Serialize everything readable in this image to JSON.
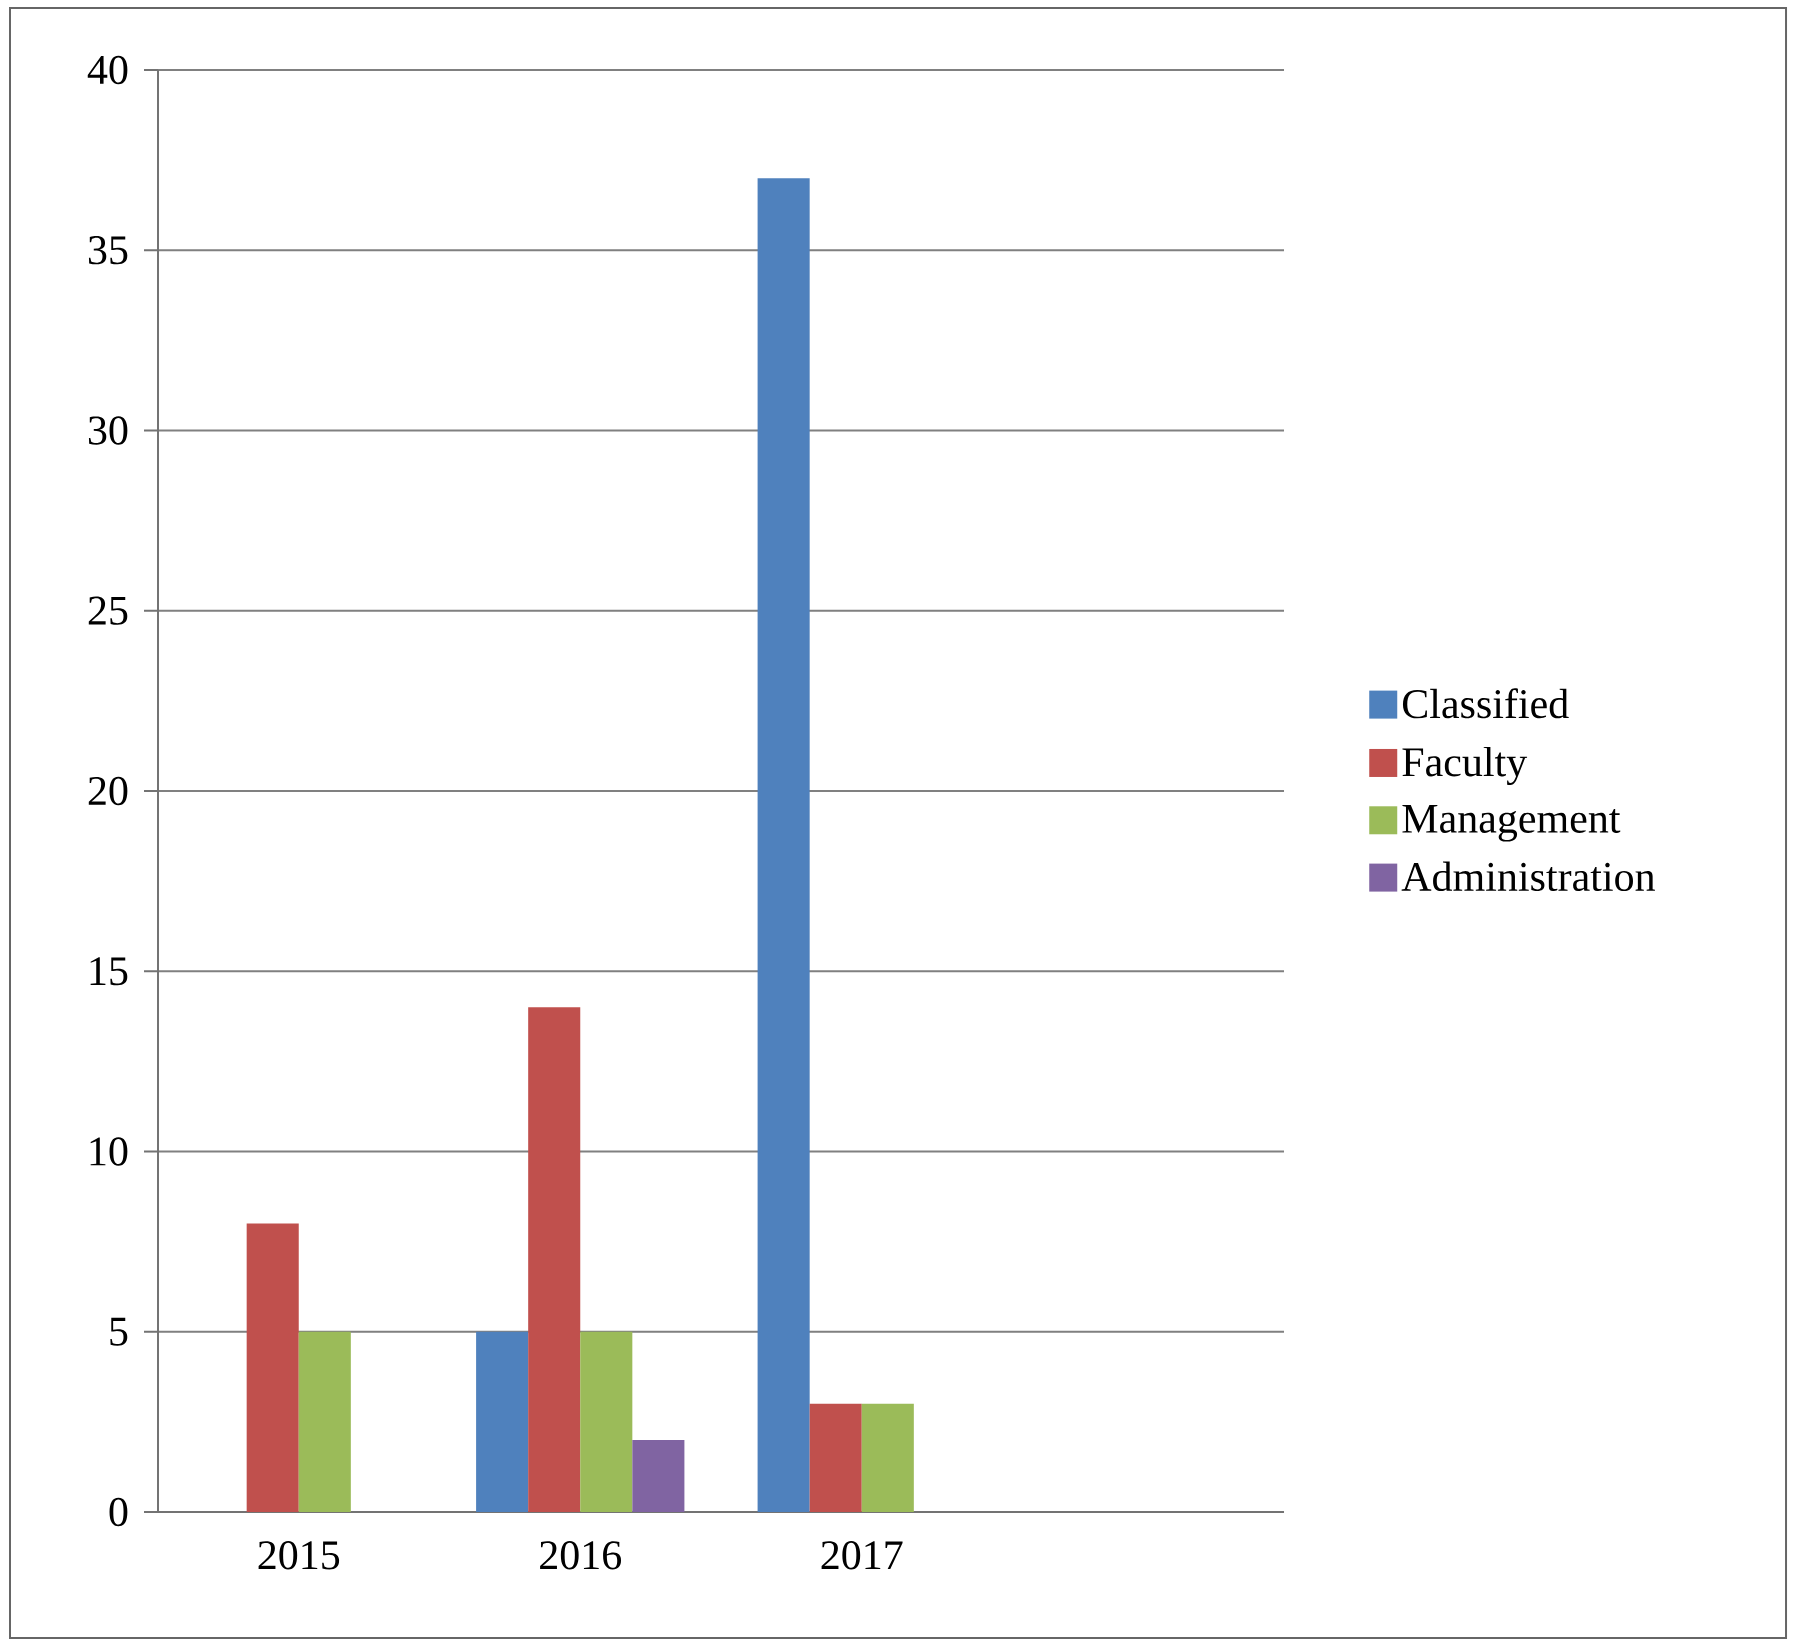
{
  "chart_data": {
    "type": "bar",
    "categories": [
      "2015",
      "2016",
      "2017",
      null
    ],
    "series": [
      {
        "name": "Classified",
        "color": "#4f81bd",
        "values": [
          null,
          5,
          37,
          null
        ]
      },
      {
        "name": "Faculty",
        "color": "#c0504d",
        "values": [
          8,
          14,
          3,
          null
        ]
      },
      {
        "name": "Management",
        "color": "#9bbb59",
        "values": [
          5,
          5,
          3,
          null
        ]
      },
      {
        "name": "Administration",
        "color": "#8064a2",
        "values": [
          null,
          2,
          null,
          null
        ]
      }
    ],
    "ylim": [
      0,
      40
    ],
    "yticks": [
      0,
      5,
      10,
      15,
      20,
      25,
      30,
      35,
      40
    ],
    "grid": "y",
    "legend": "right"
  }
}
